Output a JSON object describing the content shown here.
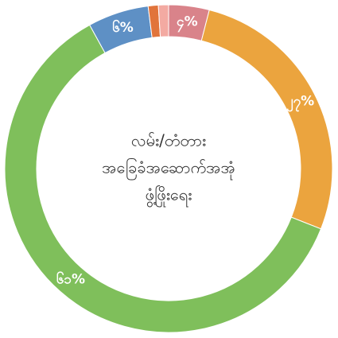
{
  "chart_data": {
    "type": "pie",
    "title": [
      "လမ်း/တံတား",
      "အခြေခံအဆောက်အအုံ",
      "ဖွံ့ဖြိုးရေး"
    ],
    "values": [
      4,
      27,
      61,
      6,
      1,
      1
    ],
    "value_labels": [
      "၄%",
      "၂၇%",
      "၆၁%",
      "၆%",
      null,
      null
    ],
    "colors": [
      "#d9838a",
      "#eba43e",
      "#7fbf5b",
      "#5e90c5",
      "#e1743b",
      "#f3aaa2"
    ]
  }
}
